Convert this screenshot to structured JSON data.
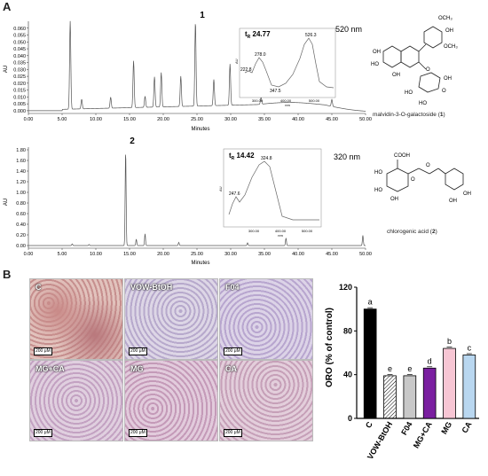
{
  "panel_a": {
    "letter": "A",
    "chrom1": {
      "peak_label": "1",
      "wavelength": "520 nm",
      "y_axis_label": "AU",
      "x_axis_label": "Minutes",
      "y_ticks": [
        "0.060",
        "0.055",
        "0.050",
        "0.045",
        "0.040",
        "0.035",
        "0.030",
        "0.025",
        "0.020",
        "0.015",
        "0.010",
        "0.005",
        "0.000"
      ],
      "x_ticks": [
        "0.00",
        "5.00",
        "10.00",
        "15.00",
        "20.00",
        "25.00",
        "30.00",
        "35.00",
        "40.00",
        "45.00",
        "50.00"
      ],
      "inset": {
        "tr_label": "t",
        "tr_sub": "R",
        "tr_value": "24.77",
        "peaks": [
          "222.8",
          "278.0",
          "347.5",
          "526.3"
        ],
        "ticks": [
          "300.00",
          "400.00",
          "500.00"
        ],
        "x_label": "nm",
        "y_label": "AU"
      },
      "compound_caption": "malvidin-3-O-galactoside (",
      "compound_num": "1",
      "substituents": [
        "OCH₃",
        "OH",
        "OCH₃",
        "OH",
        "HO",
        "O",
        "OH",
        "OH",
        "HO",
        "HO",
        "O"
      ]
    },
    "chrom2": {
      "peak_label": "2",
      "wavelength": "320 nm",
      "y_axis_label": "AU",
      "x_axis_label": "Minutes",
      "y_ticks": [
        "1.80",
        "1.60",
        "1.40",
        "1.20",
        "1.00",
        "0.80",
        "0.60",
        "0.40",
        "0.20",
        "0.00"
      ],
      "x_ticks": [
        "0.00",
        "5.00",
        "10.00",
        "15.00",
        "20.00",
        "25.00",
        "30.00",
        "35.00",
        "40.00",
        "45.00",
        "50.00"
      ],
      "inset": {
        "tr_label": "t",
        "tr_sub": "R",
        "tr_value": "14.42",
        "peaks": [
          "247.6",
          "324.8"
        ],
        "ticks": [
          "300.00",
          "400.00",
          "500.00"
        ],
        "x_label": "nm",
        "y_label": "AU"
      },
      "compound_caption": "chlorogenic acid (",
      "compound_num": "2",
      "substituents": [
        "COOH",
        "HO",
        "HO",
        "O",
        "OH",
        "OH",
        "O",
        "OH"
      ]
    }
  },
  "panel_b": {
    "letter": "B",
    "micrographs": [
      {
        "label": "C",
        "scale": "200 μM"
      },
      {
        "label": "VOW-BtOH",
        "scale": "200 μM"
      },
      {
        "label": "F04",
        "scale": "200 μM"
      },
      {
        "label": "MG+CA",
        "scale": "200 μM"
      },
      {
        "label": "MG",
        "scale": "200 μM"
      },
      {
        "label": "CA",
        "scale": "200 μM"
      }
    ],
    "bar_colors": {
      "C": "#000000",
      "VOW-BtOH": "#ffffff",
      "F04": "#c8c8c8",
      "MG+CA": "#7a1fa0",
      "MG": "#f7c6d4",
      "CA": "#b9d7f0"
    }
  },
  "chart_data": [
    {
      "type": "line",
      "title": "",
      "xlabel": "Minutes",
      "ylabel": "AU",
      "xlim": [
        0,
        50
      ],
      "ylim": [
        -0.002,
        0.065
      ],
      "series": [
        {
          "x": [
            6.2,
            7.9,
            12.2,
            15.6,
            17.3,
            18.7,
            19.7,
            22.6,
            24.77,
            27.5,
            29.9,
            34.5,
            45.0
          ],
          "y": [
            0.064,
            0.007,
            0.008,
            0.034,
            0.008,
            0.022,
            0.025,
            0.022,
            0.061,
            0.019,
            0.03,
            0.005,
            0.005
          ]
        }
      ]
    },
    {
      "type": "line",
      "title": "",
      "xlabel": "Minutes",
      "ylabel": "AU",
      "xlim": [
        0,
        50
      ],
      "ylim": [
        -0.05,
        1.85
      ],
      "series": [
        {
          "x": [
            6.5,
            9.0,
            14.42,
            16.0,
            17.3,
            22.3,
            32.5,
            38.2,
            49.6
          ],
          "y": [
            0.03,
            0.02,
            1.78,
            0.12,
            0.22,
            0.06,
            0.05,
            0.14,
            0.19
          ]
        }
      ]
    },
    {
      "type": "bar",
      "title": "",
      "xlabel": "",
      "ylabel": "ORO (% of control)",
      "ylim": [
        0,
        120
      ],
      "yticks": [
        "0",
        "40",
        "80",
        "120"
      ],
      "categories": [
        "C",
        "VOW-BtOH",
        "F04",
        "MG+CA",
        "MG",
        "CA"
      ],
      "values": [
        100,
        39,
        39,
        46,
        64,
        58
      ],
      "letters": [
        "a",
        "e",
        "e",
        "d",
        "b",
        "c"
      ]
    }
  ]
}
